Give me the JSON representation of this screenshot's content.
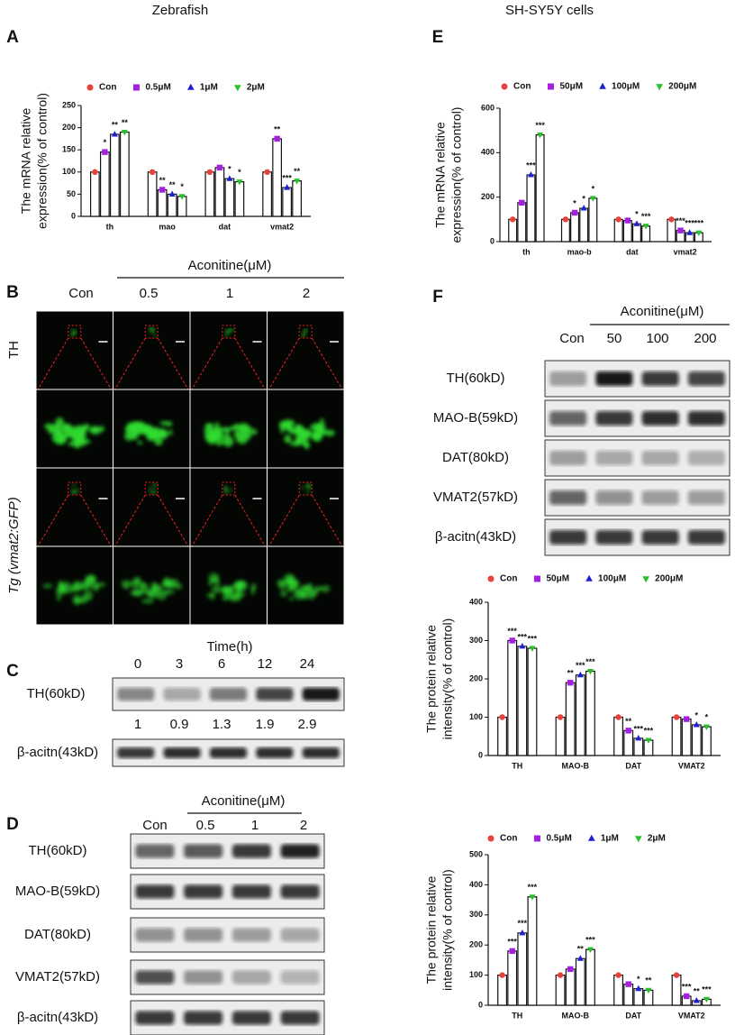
{
  "headings": {
    "left": "Zebrafish",
    "right": "SH-SY5Y cells"
  },
  "panel_letters": [
    "A",
    "B",
    "C",
    "D",
    "E",
    "F"
  ],
  "panel_b": {
    "treatment": "Aconitine(μM)",
    "columns": [
      "Con",
      "0.5",
      "1",
      "2"
    ],
    "rows": [
      "TH",
      "Tg (vmat2:GFP)"
    ]
  },
  "panel_c": {
    "header": "Time(h)",
    "lanes": [
      "0",
      "3",
      "6",
      "12",
      "24"
    ],
    "rows": [
      "TH(60kD)",
      "β-acitn(43kD)"
    ],
    "ratios": [
      "1",
      "0.9",
      "1.3",
      "1.9",
      "2.9"
    ]
  },
  "panel_d": {
    "treatment": "Aconitine(μM)",
    "lanes": [
      "Con",
      "0.5",
      "1",
      "2"
    ],
    "rows": [
      "TH(60kD)",
      "MAO-B(59kD)",
      "DAT(80kD)",
      "VMAT2(57kD)",
      "β-acitn(43kD)"
    ]
  },
  "panel_f": {
    "treatment": "Aconitine(μM)",
    "lanes": [
      "Con",
      "50",
      "100",
      "200"
    ],
    "rows": [
      "TH(60kD)",
      "MAO-B(59kD)",
      "DAT(80kD)",
      "VMAT2(57kD)",
      "β-acitn(43kD)"
    ]
  },
  "chart_data": [
    {
      "type": "bar",
      "ylabel": [
        "The mRNA relative",
        "expression(% of control)"
      ],
      "categories": [
        "th",
        "mao",
        "dat",
        "vmat2"
      ],
      "ylim": [
        0,
        250
      ],
      "yticks": [
        0,
        50,
        100,
        150,
        200,
        250
      ],
      "series": [
        {
          "name": "Con",
          "color": "#e8403a",
          "marker": "circle",
          "values": [
            100,
            100,
            100,
            100
          ],
          "significance": [
            null,
            null,
            null,
            null
          ]
        },
        {
          "name": "0.5μM",
          "color": "#a41fe0",
          "marker": "square",
          "values": [
            145,
            60,
            110,
            175
          ],
          "significance": [
            "*",
            "**",
            null,
            "**"
          ]
        },
        {
          "name": "1μM",
          "color": "#1f1fd6",
          "marker": "triangle-up",
          "values": [
            185,
            50,
            85,
            65
          ],
          "significance": [
            "**",
            "**",
            "*",
            "***"
          ]
        },
        {
          "name": "2μM",
          "color": "#27c22a",
          "marker": "triangle-down",
          "values": [
            190,
            45,
            78,
            80
          ],
          "significance": [
            "**",
            "*",
            "*",
            "**"
          ]
        }
      ]
    },
    {
      "type": "bar",
      "ylabel": [
        "The mRNA relative",
        "expression(% of control)"
      ],
      "categories": [
        "th",
        "mao-b",
        "dat",
        "vmat2"
      ],
      "ylim": [
        0,
        600
      ],
      "yticks": [
        0,
        200,
        400,
        600
      ],
      "series": [
        {
          "name": "Con",
          "color": "#e8403a",
          "marker": "circle",
          "values": [
            100,
            100,
            100,
            100
          ],
          "significance": [
            null,
            null,
            null,
            null
          ]
        },
        {
          "name": "50μM",
          "color": "#a41fe0",
          "marker": "square",
          "values": [
            175,
            130,
            95,
            50
          ],
          "significance": [
            null,
            "*",
            null,
            "***"
          ]
        },
        {
          "name": "100μM",
          "color": "#1f1fd6",
          "marker": "triangle-up",
          "values": [
            300,
            150,
            80,
            40
          ],
          "significance": [
            "***",
            "*",
            "*",
            "***"
          ]
        },
        {
          "name": "200μM",
          "color": "#27c22a",
          "marker": "triangle-down",
          "values": [
            480,
            195,
            70,
            40
          ],
          "significance": [
            "***",
            "*",
            "***",
            "***"
          ]
        }
      ]
    },
    {
      "type": "bar",
      "ylabel": [
        "The protein relative",
        "intensity(% of control)"
      ],
      "categories": [
        "TH",
        "MAO-B",
        "DAT",
        "VMAT2"
      ],
      "ylim": [
        0,
        400
      ],
      "yticks": [
        0,
        100,
        200,
        300,
        400
      ],
      "series": [
        {
          "name": "Con",
          "color": "#e8403a",
          "marker": "circle",
          "values": [
            100,
            100,
            100,
            100
          ],
          "significance": [
            null,
            null,
            null,
            null
          ]
        },
        {
          "name": "50μM",
          "color": "#a41fe0",
          "marker": "square",
          "values": [
            300,
            190,
            65,
            95
          ],
          "significance": [
            "***",
            "**",
            "**",
            null
          ]
        },
        {
          "name": "100μM",
          "color": "#1f1fd6",
          "marker": "triangle-up",
          "values": [
            285,
            210,
            45,
            80
          ],
          "significance": [
            "***",
            "***",
            "***",
            "*"
          ]
        },
        {
          "name": "200μM",
          "color": "#27c22a",
          "marker": "triangle-down",
          "values": [
            280,
            220,
            40,
            75
          ],
          "significance": [
            "***",
            "***",
            "***",
            "*"
          ]
        }
      ]
    },
    {
      "type": "bar",
      "ylabel": [
        "The protein relative",
        "intensity(% of control)"
      ],
      "categories": [
        "TH",
        "MAO-B",
        "DAT",
        "VMAT2"
      ],
      "ylim": [
        0,
        500
      ],
      "yticks": [
        0,
        100,
        200,
        300,
        400,
        500
      ],
      "series": [
        {
          "name": "Con",
          "color": "#e8403a",
          "marker": "circle",
          "values": [
            100,
            100,
            100,
            100
          ],
          "significance": [
            null,
            null,
            null,
            null
          ]
        },
        {
          "name": "0.5μM",
          "color": "#a41fe0",
          "marker": "square",
          "values": [
            180,
            120,
            70,
            30
          ],
          "significance": [
            "***",
            null,
            null,
            "***"
          ]
        },
        {
          "name": "1μM",
          "color": "#1f1fd6",
          "marker": "triangle-up",
          "values": [
            240,
            155,
            55,
            15
          ],
          "significance": [
            "***",
            "**",
            "*",
            "**"
          ]
        },
        {
          "name": "2μM",
          "color": "#27c22a",
          "marker": "triangle-down",
          "values": [
            360,
            185,
            50,
            20
          ],
          "significance": [
            "***",
            "***",
            "**",
            "***"
          ]
        }
      ]
    }
  ]
}
